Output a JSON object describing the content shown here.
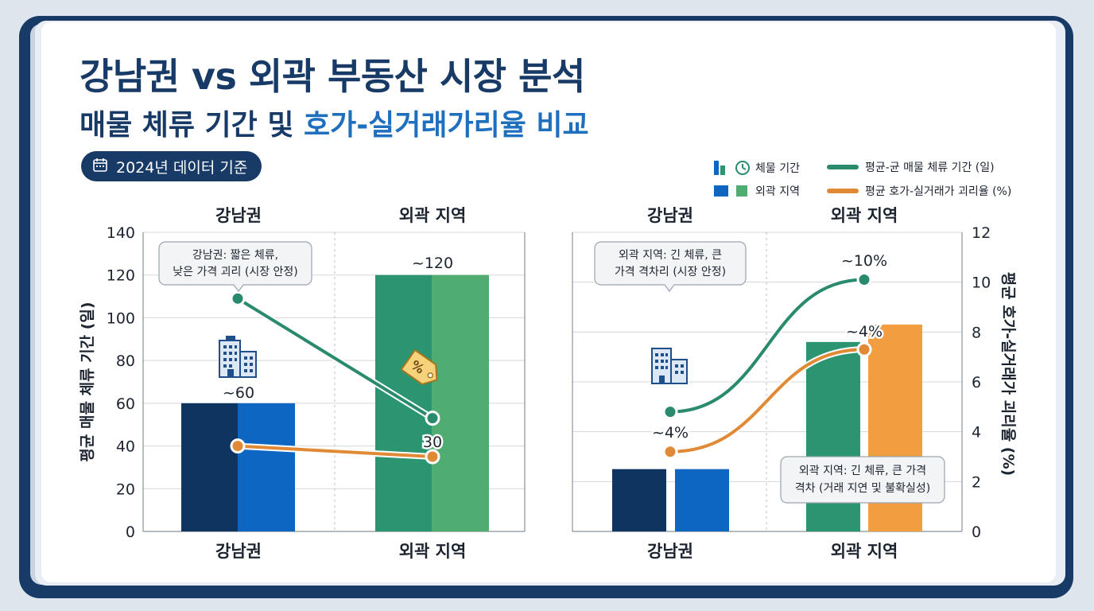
{
  "header": {
    "title": "강남권 vs 외곽 부동산 시장 분석",
    "subtitle_main": "매물 체류 기간 및 ",
    "subtitle_accent": "호가-실거래가리율 비교",
    "badge": "2024년 데이터 기준"
  },
  "legend": {
    "bar_metric": "체물 기간",
    "regions": "외곽 지역",
    "line_green": "평균-균 매물 체류 기간 (일)",
    "line_orange": "평균 호가-실거래가 괴리율 (%)"
  },
  "colors": {
    "navy": "#173a66",
    "gangnam_dark": "#0f3460",
    "gangnam_blue": "#0d66c2",
    "outer_green_dark": "#2b9470",
    "outer_green_light": "#4fad72",
    "orange": "#f09e40",
    "line_green": "#2a8a6e",
    "line_orange": "#e08a36"
  },
  "chart_data": [
    {
      "type": "bar",
      "categories": [
        "강남권",
        "외곽 지역"
      ],
      "top_labels": [
        "강남권",
        "외곽 지역"
      ],
      "ylabel": "평균 매물 체류 기간 (일)",
      "ylim": [
        0,
        140
      ],
      "yticks": [
        0,
        20,
        40,
        60,
        80,
        100,
        120,
        140
      ],
      "series": [
        {
          "values": [
            60,
            120
          ]
        },
        {
          "values": [
            60,
            120
          ]
        }
      ],
      "lines": [
        {
          "values": [
            109,
            53
          ]
        },
        {
          "values": [
            40,
            35
          ]
        }
      ],
      "value_labels": [
        "~60",
        "~120",
        "30"
      ],
      "callout": [
        "강남권: 짧은 체류,",
        "낮은 가격 괴리 (시장 안정)"
      ],
      "icons": [
        "building-icon",
        "price-tag-icon"
      ]
    },
    {
      "type": "bar",
      "categories": [
        "강남권",
        "외곽 지역"
      ],
      "top_labels": [
        "강남권",
        "외곽 지역"
      ],
      "ylabel": "평균 호가-실거래가 괴리율 (%)",
      "ylim": [
        0,
        12
      ],
      "yticks": [
        0,
        2,
        4,
        6,
        8,
        10,
        12
      ],
      "series": [
        {
          "values": [
            2.5,
            7.6
          ]
        },
        {
          "values": [
            2.5,
            8.3
          ]
        }
      ],
      "lines": [
        {
          "values": [
            4.8,
            10.1
          ]
        },
        {
          "values": [
            3.2,
            7.3
          ]
        }
      ],
      "value_labels": [
        "~4%",
        "~10%",
        "~4%"
      ],
      "callouts": [
        [
          "외곽 지역: 긴 체류, 큰",
          "가격 격차리 (시장 안정)"
        ],
        [
          "외곽 지역: 긴 체류, 큰 가격",
          "격차 (거래 지연 및 불확실성)"
        ]
      ],
      "icons": [
        "building-icon"
      ]
    }
  ]
}
